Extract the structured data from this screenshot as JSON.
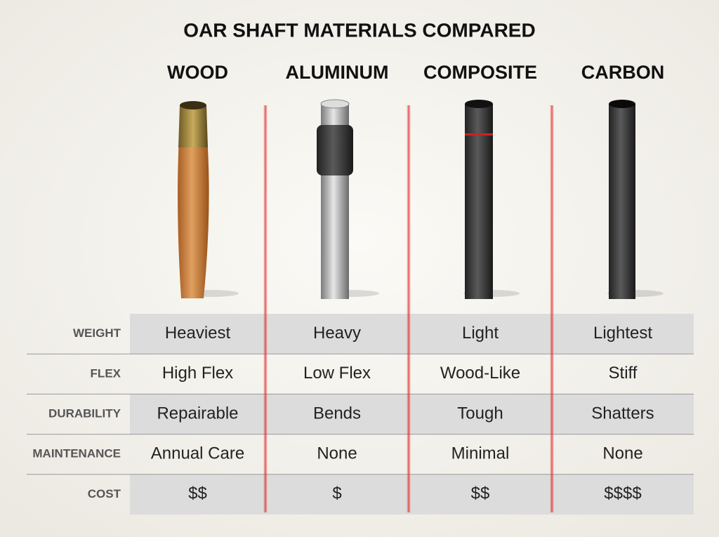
{
  "title": "OAR SHAFT MATERIALS COMPARED",
  "columns": [
    "WOOD",
    "ALUMINUM",
    "COMPOSITE",
    "CARBON"
  ],
  "rows": [
    {
      "label": "WEIGHT",
      "cells": [
        "Heaviest",
        "Heavy",
        "Light",
        "Lightest"
      ]
    },
    {
      "label": "FLEX",
      "cells": [
        "High Flex",
        "Low Flex",
        "Wood-Like",
        "Stiff"
      ]
    },
    {
      "label": "DURABILITY",
      "cells": [
        "Repairable",
        "Bends",
        "Tough",
        "Shatters"
      ]
    },
    {
      "label": "MAINTENANCE",
      "cells": [
        "Annual Care",
        "None",
        "Minimal",
        "None"
      ]
    },
    {
      "label": "COST",
      "cells": [
        "$$",
        "$",
        "$$",
        "$$$$"
      ]
    }
  ]
}
